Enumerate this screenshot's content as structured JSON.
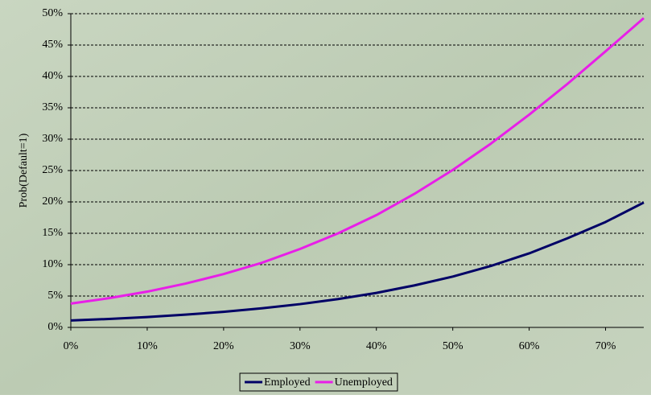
{
  "chart_data": {
    "type": "line",
    "y_label": "Prob(Default=1)",
    "x": [
      0,
      5,
      10,
      15,
      20,
      25,
      30,
      35,
      40,
      45,
      50,
      55,
      60,
      65,
      70,
      75
    ],
    "series": [
      {
        "name": "Employed",
        "color": "#000066",
        "values": [
          1.1,
          1.35,
          1.65,
          2.03,
          2.48,
          3.04,
          3.71,
          4.52,
          5.5,
          6.7,
          8.1,
          9.8,
          11.8,
          14.2,
          16.8,
          19.9
        ]
      },
      {
        "name": "Unemployed",
        "color": "#e81ee8",
        "values": [
          3.8,
          4.66,
          5.7,
          6.98,
          8.5,
          10.3,
          12.5,
          15.0,
          17.9,
          21.3,
          25.1,
          29.3,
          33.9,
          38.8,
          44.0,
          49.3
        ]
      }
    ],
    "xlim": [
      0,
      75
    ],
    "xticks": [
      {
        "value": 0,
        "label": "0%"
      },
      {
        "value": 10,
        "label": "10%"
      },
      {
        "value": 20,
        "label": "20%"
      },
      {
        "value": 30,
        "label": "30%"
      },
      {
        "value": 40,
        "label": "40%"
      },
      {
        "value": 50,
        "label": "50%"
      },
      {
        "value": 60,
        "label": "60%"
      },
      {
        "value": 70,
        "label": "70%"
      }
    ],
    "ylim": [
      0,
      50
    ],
    "yticks": [
      {
        "value": 0,
        "label": "0%"
      },
      {
        "value": 5,
        "label": "5%"
      },
      {
        "value": 10,
        "label": "10%"
      },
      {
        "value": 15,
        "label": "15%"
      },
      {
        "value": 20,
        "label": "20%"
      },
      {
        "value": 25,
        "label": "25%"
      },
      {
        "value": 30,
        "label": "30%"
      },
      {
        "value": 35,
        "label": "35%"
      },
      {
        "value": 40,
        "label": "40%"
      },
      {
        "value": 45,
        "label": "45%"
      },
      {
        "value": 50,
        "label": "50%"
      }
    ],
    "grid": true,
    "legend": "bottom"
  }
}
